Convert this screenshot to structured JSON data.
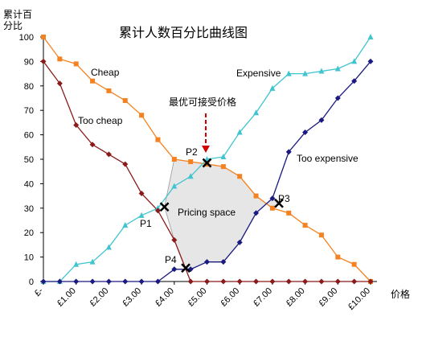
{
  "chart_data": {
    "type": "line",
    "title": "累计人数百分比曲线图",
    "ylabel_line1": "累计百",
    "ylabel_line2": "分比",
    "xlabel": "价格",
    "ylim": [
      0,
      100
    ],
    "y_ticks": [
      0,
      10,
      20,
      30,
      40,
      50,
      60,
      70,
      80,
      90,
      100
    ],
    "x_ticks": [
      "£-",
      "£1.00",
      "£2.00",
      "£3.00",
      "£4.00",
      "£5.00",
      "£6.00",
      "£7.00",
      "£8.00",
      "£9.00",
      "£10.00"
    ],
    "xlim": [
      0,
      10
    ],
    "grid": false,
    "series": [
      {
        "name": "Cheap",
        "color": "#f58220",
        "marker": "square",
        "x": [
          0,
          0.5,
          1,
          1.5,
          2,
          2.5,
          3,
          3.5,
          4,
          4.5,
          5,
          5.5,
          6,
          6.5,
          7,
          7.5,
          8,
          8.5,
          9,
          9.5,
          10
        ],
        "y": [
          100,
          91,
          89,
          82,
          78,
          74,
          68,
          58,
          50,
          49,
          48,
          47,
          43,
          35,
          30,
          28,
          23,
          19,
          10,
          7,
          0
        ]
      },
      {
        "name": "Expensive",
        "color": "#40c4d0",
        "marker": "triangle",
        "x": [
          0,
          0.5,
          1,
          1.5,
          2,
          2.5,
          3,
          3.5,
          4,
          4.5,
          5,
          5.5,
          6,
          6.5,
          7,
          7.5,
          8,
          8.5,
          9,
          9.5,
          10
        ],
        "y": [
          0,
          0,
          7,
          8,
          14,
          23,
          27,
          30,
          39,
          43,
          50,
          51,
          61,
          69,
          79,
          85,
          85,
          86,
          87,
          90,
          100
        ]
      },
      {
        "name": "Too cheap",
        "color": "#8b1a1a",
        "marker": "diamond",
        "x": [
          0,
          0.5,
          1,
          1.5,
          2,
          2.5,
          3,
          3.5,
          4,
          4.5,
          5,
          5.5,
          6,
          6.5,
          7,
          7.5,
          8,
          8.5,
          9,
          9.5,
          10
        ],
        "y": [
          90,
          81,
          64,
          56,
          52,
          48,
          36,
          29,
          17,
          0,
          0,
          0,
          0,
          0,
          0,
          0,
          0,
          0,
          0,
          0,
          0
        ]
      },
      {
        "name": "Too expensive",
        "color": "#1a1a80",
        "marker": "diamond",
        "x": [
          0,
          0.5,
          1,
          1.5,
          2,
          2.5,
          3,
          3.5,
          4,
          4.5,
          5,
          5.5,
          6,
          6.5,
          7,
          7.5,
          8,
          8.5,
          9,
          9.5,
          10
        ],
        "y": [
          0,
          0,
          0,
          0,
          0,
          0,
          0,
          0,
          5,
          5,
          8,
          8,
          16,
          28,
          34,
          53,
          61,
          66,
          75,
          82,
          90
        ]
      }
    ],
    "intersections": [
      {
        "label": "P1",
        "x": 3.7,
        "y": 30.5
      },
      {
        "label": "P2",
        "x": 5.0,
        "y": 48.5
      },
      {
        "label": "P3",
        "x": 7.2,
        "y": 32
      },
      {
        "label": "P4",
        "x": 4.35,
        "y": 5.5
      }
    ],
    "pricing_space_label": "Pricing space",
    "annotation": "最优可接受价格"
  }
}
